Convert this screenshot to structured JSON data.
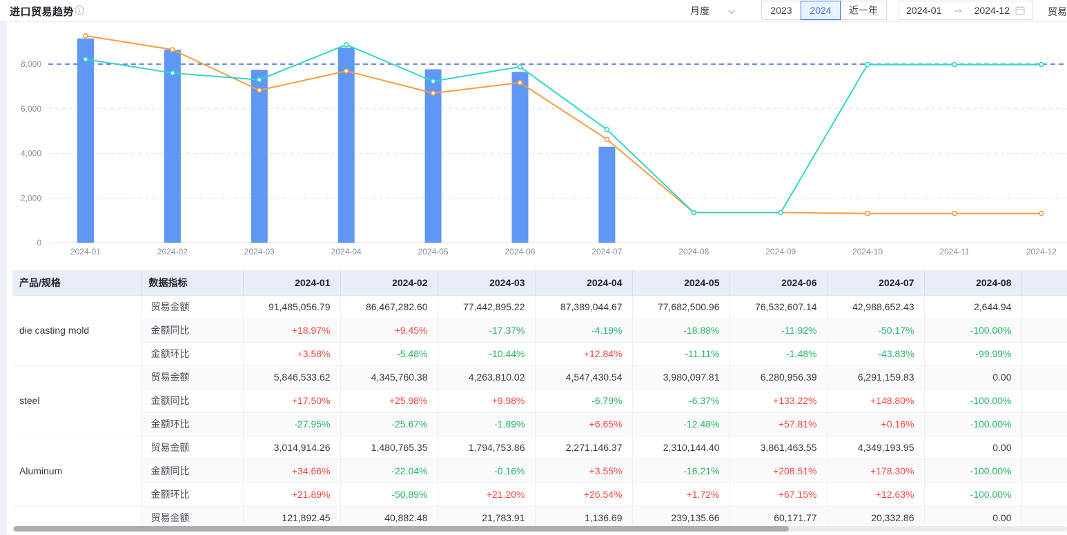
{
  "header": {
    "title": "进口贸易趋势",
    "period_select": "月度",
    "year_buttons": [
      "2023",
      "2024",
      "近一年"
    ],
    "active_year": "2024",
    "date_start": "2024-01",
    "date_end": "2024-12",
    "trailing_label": "贸易"
  },
  "chart_data": {
    "type": "bar+line",
    "categories": [
      "2024-01",
      "2024-02",
      "2024-03",
      "2024-04",
      "2024-05",
      "2024-06",
      "2024-07",
      "2024-08",
      "2024-09",
      "2024-10",
      "2024-11",
      "2024-12"
    ],
    "series": [
      {
        "name": "trade-amount-bar",
        "type": "bar",
        "color": "#5E97F6",
        "values": [
          9149,
          8647,
          7744,
          8739,
          7768,
          7653,
          4299,
          0,
          0,
          0,
          0,
          0
        ]
      },
      {
        "name": "line-orange",
        "type": "line",
        "color": "#FA9C3C",
        "values": [
          9270,
          8650,
          6830,
          7690,
          6700,
          7170,
          4630,
          1350,
          1350,
          1310,
          1310,
          1310
        ]
      },
      {
        "name": "line-teal",
        "type": "line",
        "color": "#2FD8C5",
        "values": [
          8220,
          7600,
          7300,
          8870,
          7230,
          7880,
          5070,
          1350,
          1350,
          7980,
          7980,
          7980
        ]
      }
    ],
    "yticks": [
      0,
      2000,
      4000,
      6000,
      8000
    ],
    "ytick_labels": [
      "0",
      "2,000",
      "4,000",
      "6,000",
      "8,000"
    ],
    "refline": 8000,
    "ylim": [
      0,
      9600
    ],
    "grid": "dashed",
    "legend": "none"
  },
  "table": {
    "columns": [
      "产品/规格",
      "数据指标",
      "2024-01",
      "2024-02",
      "2024-03",
      "2024-04",
      "2024-05",
      "2024-06",
      "2024-07",
      "2024-08"
    ],
    "groups": [
      {
        "product": "die casting mold",
        "rows": [
          {
            "indicator": "贸易金额",
            "values": [
              "91,485,056.79",
              "86,467,282.60",
              "77,442,895.22",
              "87,389,044.67",
              "77,682,500.96",
              "76,532,607.14",
              "42,988,652.43",
              "2,644.94"
            ]
          },
          {
            "indicator": "金额同比",
            "values": [
              "+18.97%",
              "+9.45%",
              "-17.37%",
              "-4.19%",
              "-18.88%",
              "-11.92%",
              "-50.17%",
              "-100.00%"
            ]
          },
          {
            "indicator": "金额环比",
            "values": [
              "+3.58%",
              "-5.48%",
              "-10.44%",
              "+12.84%",
              "-11.11%",
              "-1.48%",
              "-43.83%",
              "-99.99%"
            ]
          }
        ]
      },
      {
        "product": "steel",
        "rows": [
          {
            "indicator": "贸易金额",
            "values": [
              "5,846,533.62",
              "4,345,760.38",
              "4,263,810.02",
              "4,547,430.54",
              "3,980,097.81",
              "6,280,956.39",
              "6,291,159.83",
              "0.00"
            ]
          },
          {
            "indicator": "金额同比",
            "values": [
              "+17.50%",
              "+25.98%",
              "+9.98%",
              "-6.79%",
              "-6.37%",
              "+133.22%",
              "+148.80%",
              "-100.00%"
            ]
          },
          {
            "indicator": "金额环比",
            "values": [
              "-27.95%",
              "-25.67%",
              "-1.89%",
              "+6.65%",
              "-12.48%",
              "+57.81%",
              "+0.16%",
              "-100.00%"
            ]
          }
        ]
      },
      {
        "product": "Aluminum",
        "rows": [
          {
            "indicator": "贸易金额",
            "values": [
              "3,014,914.26",
              "1,480,765.35",
              "1,794,753.86",
              "2,271,146.37",
              "2,310,144.40",
              "3,861,463.55",
              "4,349,193.95",
              "0.00"
            ]
          },
          {
            "indicator": "金额同比",
            "values": [
              "+34.66%",
              "-22.04%",
              "-0.16%",
              "+3.55%",
              "-16.21%",
              "+208.51%",
              "+178.30%",
              "-100.00%"
            ]
          },
          {
            "indicator": "金额环比",
            "values": [
              "+21.89%",
              "-50.89%",
              "+21.20%",
              "+26.54%",
              "+1.72%",
              "+67.15%",
              "+12.63%",
              "-100.00%"
            ]
          }
        ]
      },
      {
        "product": "",
        "rows": [
          {
            "indicator": "贸易金额",
            "values": [
              "121,892.45",
              "40,882.48",
              "21,783.91",
              "1,136.69",
              "239,135.66",
              "60,171.77",
              "20,332.86",
              "0.00"
            ]
          }
        ]
      }
    ]
  },
  "colors": {
    "bar": "#5E97F6",
    "line_orange": "#FA9C3C",
    "line_teal": "#2FD8C5",
    "refline": "#4D7BF0",
    "positive": "#F5483B",
    "negative": "#26B863",
    "accent": "#3D6EEB",
    "table_header_bg": "#E9EDFA",
    "axis_text": "#8A909C"
  }
}
